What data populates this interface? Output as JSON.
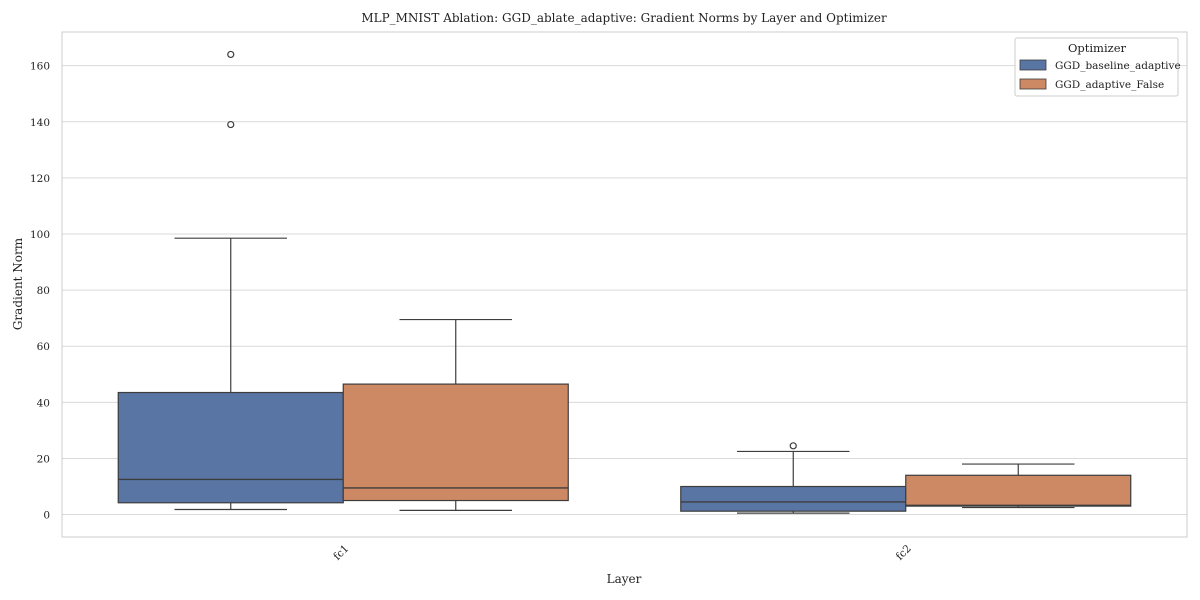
{
  "chart_data": {
    "type": "box",
    "title": "MLP_MNIST Ablation: GGD_ablate_adaptive: Gradient Norms by Layer and Optimizer",
    "xlabel": "Layer",
    "ylabel": "Gradient Norm",
    "categories": [
      "fc1",
      "fc2"
    ],
    "ylim": [
      -8,
      172
    ],
    "yticks": [
      0,
      20,
      40,
      60,
      80,
      100,
      120,
      140,
      160
    ],
    "grid": true,
    "legend": {
      "title": "Optimizer",
      "placement": "top-right"
    },
    "series": [
      {
        "name": "GGD_baseline_adaptive",
        "color": "#5875a4",
        "boxes": [
          {
            "category": "fc1",
            "whisker_low": 1.8,
            "q1": 4.2,
            "median": 12.5,
            "q3": 43.5,
            "whisker_high": 98.5,
            "outliers": [
              139,
              164
            ]
          },
          {
            "category": "fc2",
            "whisker_low": 0.5,
            "q1": 1.2,
            "median": 4.5,
            "q3": 10.0,
            "whisker_high": 22.5,
            "outliers": [
              24.5
            ]
          }
        ]
      },
      {
        "name": "GGD_adaptive_False",
        "color": "#cc8963",
        "boxes": [
          {
            "category": "fc1",
            "whisker_low": 1.5,
            "q1": 5.0,
            "median": 9.5,
            "q3": 46.5,
            "whisker_high": 69.5,
            "outliers": []
          },
          {
            "category": "fc2",
            "whisker_low": 2.5,
            "q1": 3.0,
            "median": 3.3,
            "q3": 14.0,
            "whisker_high": 18.0,
            "outliers": []
          }
        ]
      }
    ]
  }
}
